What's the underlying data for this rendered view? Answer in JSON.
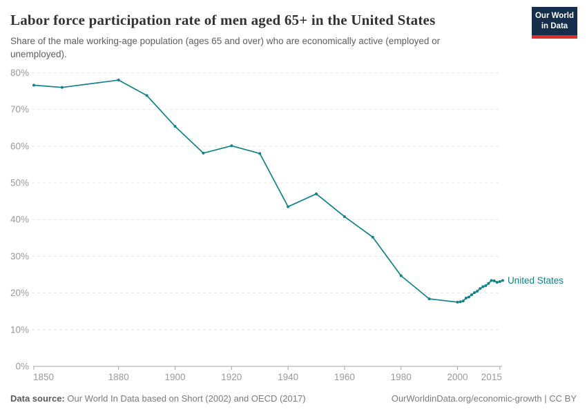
{
  "header": {
    "logo": {
      "line1": "Our World",
      "line2": "in Data",
      "bg_color": "#142e4c",
      "accent_color": "#dc2f27"
    }
  },
  "chart_data": {
    "type": "line",
    "title": "Labor force participation rate of men aged 65+ in the United States",
    "subtitle": "Share of the male working-age population (ages 65 and over) who are economically active (employed or unemployed).",
    "xlabel": "",
    "ylabel": "",
    "xlim": [
      1850,
      2018
    ],
    "ylim": [
      0,
      80
    ],
    "grid": "dashed-horizontal",
    "legend_position": "end-of-line",
    "x_ticks": [
      1850,
      1880,
      1900,
      1920,
      1940,
      1960,
      1980,
      2000,
      2015
    ],
    "y_ticks": [
      0,
      10,
      20,
      30,
      40,
      50,
      60,
      70,
      80
    ],
    "y_tick_suffix": "%",
    "axis_color": "#a5a5a5",
    "tick_label_color": "#9a9a9a",
    "gridline_color": "#e4e4e4",
    "series": [
      {
        "name": "United States",
        "color": "#0f828b",
        "points": [
          [
            1850,
            76.6
          ],
          [
            1860,
            76.0
          ],
          [
            1880,
            78.0
          ],
          [
            1890,
            73.8
          ],
          [
            1900,
            65.4
          ],
          [
            1910,
            58.1
          ],
          [
            1920,
            60.1
          ],
          [
            1930,
            58.0
          ],
          [
            1940,
            43.5
          ],
          [
            1950,
            47.0
          ],
          [
            1960,
            40.8
          ],
          [
            1970,
            35.2
          ],
          [
            1980,
            24.7
          ],
          [
            1990,
            18.4
          ],
          [
            2000,
            17.5
          ],
          [
            2001,
            17.6
          ],
          [
            2002,
            17.8
          ],
          [
            2003,
            18.6
          ],
          [
            2004,
            18.9
          ],
          [
            2005,
            19.5
          ],
          [
            2006,
            20.1
          ],
          [
            2007,
            20.5
          ],
          [
            2008,
            21.2
          ],
          [
            2009,
            21.7
          ],
          [
            2010,
            22.0
          ],
          [
            2011,
            22.6
          ],
          [
            2012,
            23.4
          ],
          [
            2013,
            23.3
          ],
          [
            2014,
            22.9
          ],
          [
            2015,
            23.1
          ],
          [
            2016,
            23.4
          ]
        ]
      }
    ]
  },
  "footer": {
    "source_label": "Data source:",
    "source_text": "Our World In Data based on Short (2002) and OECD (2017)",
    "link_text": "OurWorldinData.org/economic-growth | CC BY"
  }
}
